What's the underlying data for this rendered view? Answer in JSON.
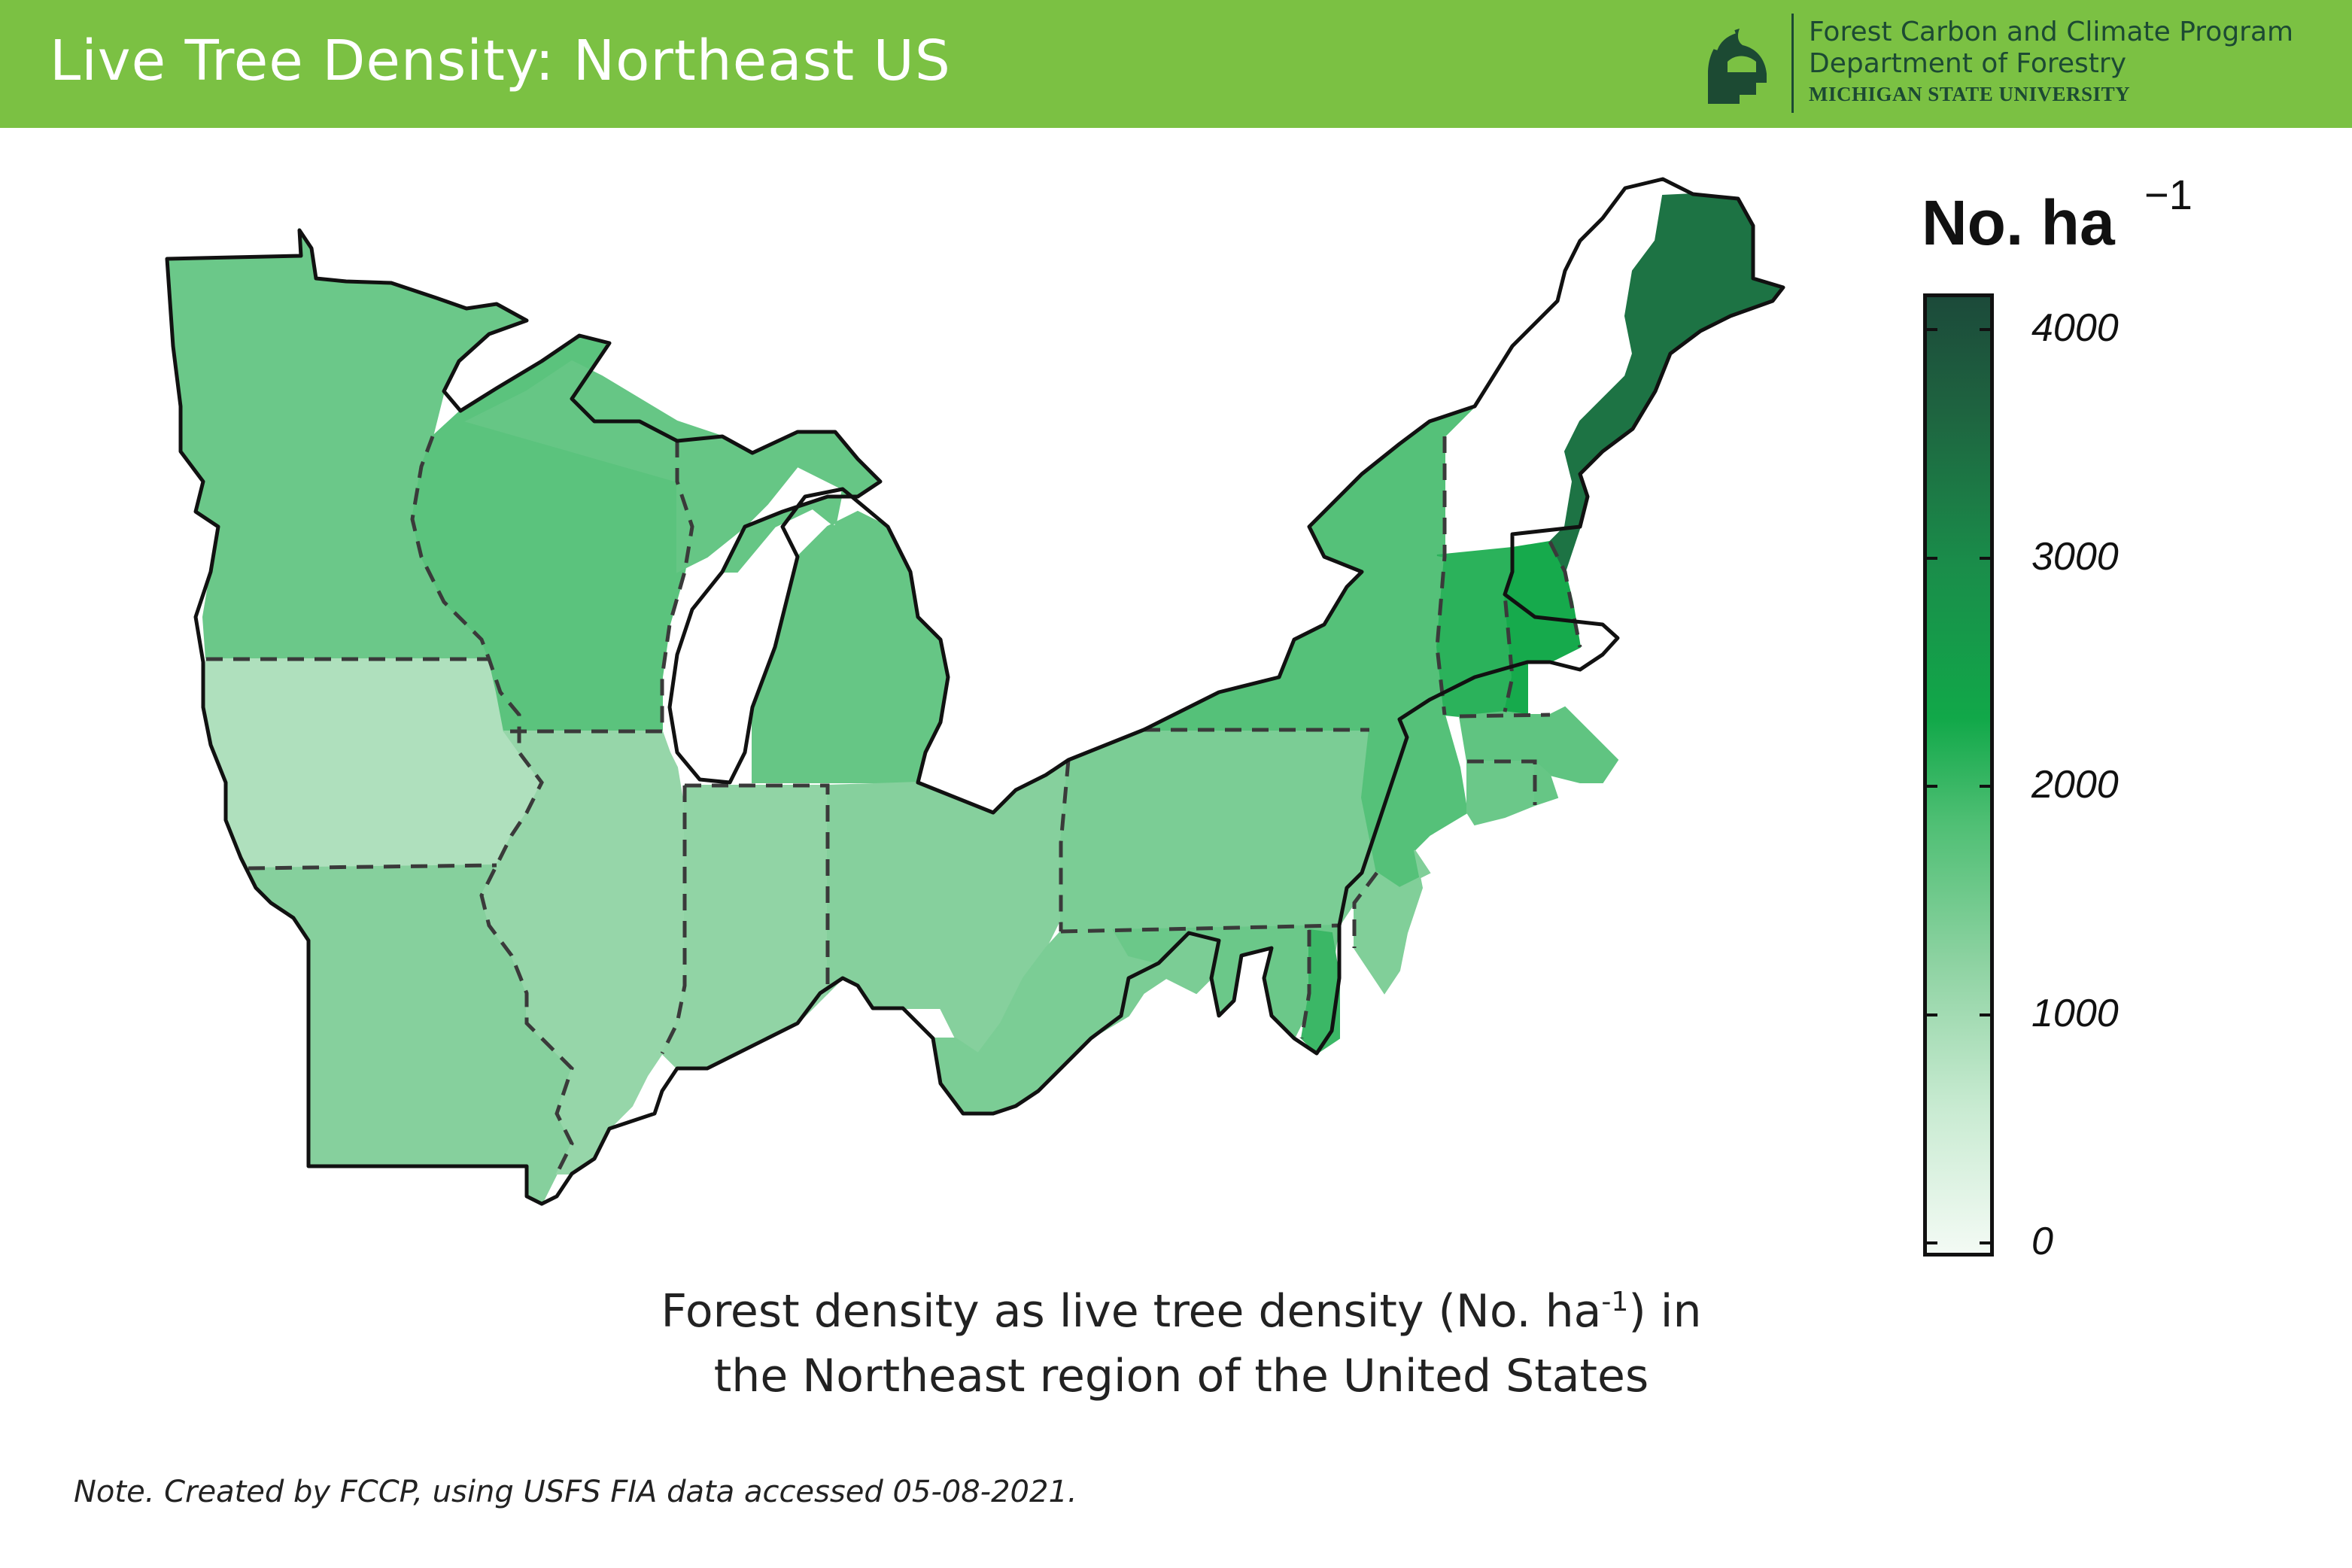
{
  "header": {
    "title": "Live Tree Density: Northeast US",
    "org_program": "Forest Carbon and Climate Program",
    "org_department": "Department of Forestry",
    "org_university": "MICHIGAN STATE UNIVERSITY",
    "bar_color": "#7bc143",
    "logo": "spartan-helmet-icon"
  },
  "legend": {
    "title": "No. ha",
    "title_superscript": "−1",
    "ticks": [
      "0",
      "1000",
      "2000",
      "3000",
      "4000"
    ],
    "range": [
      0,
      4100
    ],
    "colors": [
      "#f3faf4",
      "#c9ebd2",
      "#8fd3a3",
      "#4fbf74",
      "#11a849",
      "#1a8d4a",
      "#1e6440",
      "#1c4a3a"
    ]
  },
  "caption": {
    "line1_before": "Forest density as live tree density (No. ha",
    "line1_sup": "-1",
    "line1_after": ") in",
    "line2": "the Northeast region of the United States"
  },
  "note": "Note. Created by FCCP, using USFS FIA data accessed 05-08-2021.",
  "map": {
    "region": "Northeast US",
    "boundary_style": "dashed state lines",
    "regions": [
      {
        "name": "Minnesota",
        "density_per_ha": 1500
      },
      {
        "name": "Iowa",
        "density_per_ha": 850
      },
      {
        "name": "Missouri",
        "density_per_ha": 1250
      },
      {
        "name": "Wisconsin",
        "density_per_ha": 1650
      },
      {
        "name": "Illinois",
        "density_per_ha": 1100
      },
      {
        "name": "Michigan",
        "density_per_ha": 1550
      },
      {
        "name": "Indiana",
        "density_per_ha": 1150
      },
      {
        "name": "Ohio",
        "density_per_ha": 1250
      },
      {
        "name": "Pennsylvania",
        "density_per_ha": 1350
      },
      {
        "name": "West Virginia",
        "density_per_ha": 1350
      },
      {
        "name": "New York",
        "density_per_ha": 1700
      },
      {
        "name": "Vermont",
        "density_per_ha": 2100
      },
      {
        "name": "New Hampshire",
        "density_per_ha": 2300
      },
      {
        "name": "Maine",
        "density_per_ha": 3300
      },
      {
        "name": "Massachusetts",
        "density_per_ha": 1600
      },
      {
        "name": "Connecticut",
        "density_per_ha": 1500
      },
      {
        "name": "Rhode Island",
        "density_per_ha": 1550
      },
      {
        "name": "New Jersey",
        "density_per_ha": 1300
      },
      {
        "name": "Maryland",
        "density_per_ha": 1500
      },
      {
        "name": "Delaware",
        "density_per_ha": 1950
      }
    ]
  }
}
